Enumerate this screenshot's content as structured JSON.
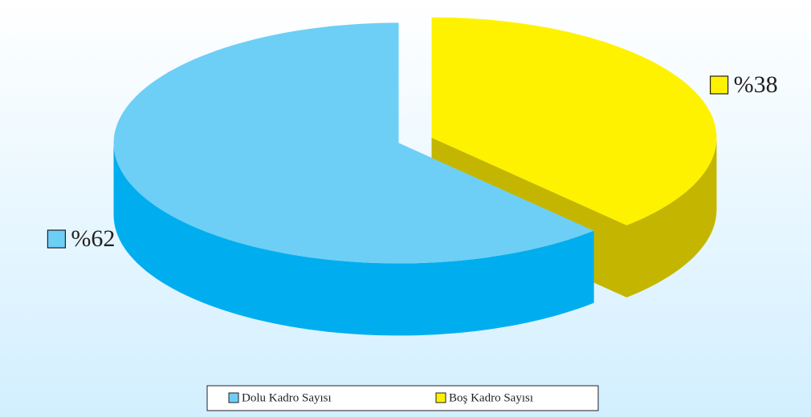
{
  "chart_data": {
    "type": "pie",
    "categories": [
      "Dolu Kadro Sayısı",
      "Boş Kadro Sayısı"
    ],
    "values": [
      62,
      38
    ],
    "value_labels": [
      "%62",
      "%38"
    ],
    "colors": [
      "#6dcff6",
      "#fff200"
    ],
    "side_colors": [
      "#00aeef",
      "#c4b600"
    ],
    "legend": "bottom"
  }
}
